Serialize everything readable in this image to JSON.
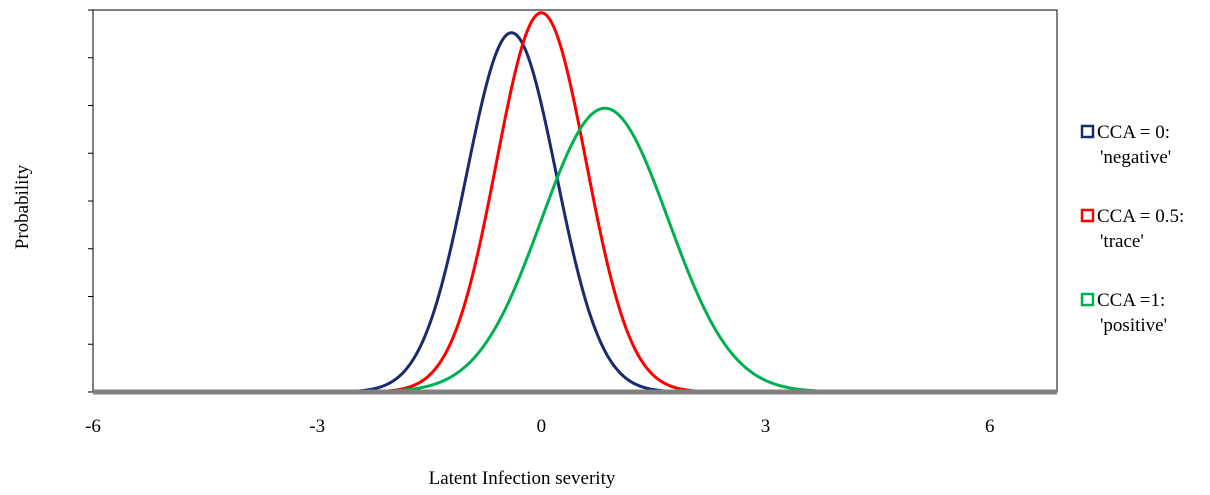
{
  "chart_data": {
    "type": "line",
    "title": "",
    "xlabel": "Latent Infection severity",
    "ylabel": "Probability",
    "xlim": [
      -6,
      6.9
    ],
    "ylim": [
      0,
      0.42
    ],
    "x_ticks": [
      "-6",
      "-3",
      "0",
      "3",
      "6"
    ],
    "x_tick_values": [
      -6,
      -3,
      0,
      3,
      6
    ],
    "y_tick_count": 8,
    "y_tick_labels_shown": false,
    "grid": false,
    "legend_position": "right",
    "series": [
      {
        "name": "CCA = 0: 'negative'",
        "legend_lines": [
          "CCA = 0:",
          "'negative'"
        ],
        "color": "#1a2a6c",
        "distribution": "normal",
        "mean": -0.4,
        "sd": 0.6,
        "peak": 0.395
      },
      {
        "name": "CCA = 0.5: 'trace'",
        "legend_lines": [
          "CCA = 0.5:",
          "'trace'"
        ],
        "color": "#ff0000",
        "distribution": "normal",
        "mean": 0.0,
        "sd": 0.6,
        "peak": 0.417
      },
      {
        "name": "CCA =1: 'positive'",
        "legend_lines": [
          "CCA =1:",
          "'positive'"
        ],
        "color": "#00b050",
        "distribution": "normal",
        "mean": 0.85,
        "sd": 0.85,
        "peak": 0.312
      }
    ],
    "x_axis_color": "#808080",
    "frame_color": "#000000"
  }
}
